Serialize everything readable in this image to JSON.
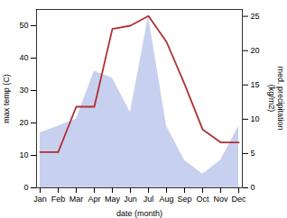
{
  "chart_data": {
    "type": "line",
    "xlabel": "date (month)",
    "ylabel": "max temp (C)",
    "y2label": "med. precipitation\n(kg/m2)",
    "categories": [
      "Jan",
      "Feb",
      "Mar",
      "Apr",
      "May",
      "Jun",
      "Jul",
      "Aug",
      "Sep",
      "Oct",
      "Nov",
      "Dec"
    ],
    "series": [
      {
        "type": "area",
        "color": "#c8d0f0",
        "axis": "y2",
        "values": [
          8,
          9,
          10,
          17,
          16,
          11,
          25,
          9,
          4,
          2,
          4,
          9
        ]
      },
      {
        "type": "line",
        "color": "#b03030",
        "values": [
          11,
          11,
          25,
          25,
          49,
          50,
          53,
          45,
          32,
          18,
          14,
          14
        ]
      }
    ],
    "ylim": [
      0,
      55
    ],
    "yticks": [
      0,
      10,
      20,
      30,
      40,
      50
    ],
    "y2lim": [
      0,
      26
    ],
    "y2ticks": [
      0,
      5,
      10,
      15,
      20,
      25
    ],
    "grid": false
  }
}
